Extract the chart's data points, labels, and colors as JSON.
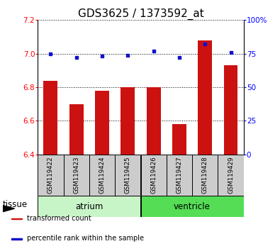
{
  "title": "GDS3625 / 1373592_at",
  "samples": [
    "GSM119422",
    "GSM119423",
    "GSM119424",
    "GSM119425",
    "GSM119426",
    "GSM119427",
    "GSM119428",
    "GSM119429"
  ],
  "transformed_counts": [
    6.84,
    6.7,
    6.78,
    6.8,
    6.8,
    6.58,
    7.08,
    6.93
  ],
  "percentile_ranks": [
    75,
    72,
    73,
    74,
    77,
    72,
    82,
    76
  ],
  "ylim_left": [
    6.4,
    7.2
  ],
  "ylim_right": [
    0,
    100
  ],
  "yticks_left": [
    6.4,
    6.6,
    6.8,
    7.0,
    7.2
  ],
  "yticks_right": [
    0,
    25,
    50,
    75,
    100
  ],
  "ytick_labels_right": [
    "0",
    "25",
    "50",
    "75",
    "100%"
  ],
  "groups": [
    {
      "label": "atrium",
      "start": 0,
      "end": 3,
      "color": "#c8f5c8"
    },
    {
      "label": "ventricle",
      "start": 4,
      "end": 7,
      "color": "#55dd55"
    }
  ],
  "bar_color": "#cc1111",
  "dot_color": "#1111cc",
  "bar_base": 6.4,
  "grid_color": "#000000",
  "bg_color": "#ffffff",
  "tick_box_color": "#cccccc",
  "tissue_label": "tissue",
  "legend_items": [
    {
      "label": "transformed count",
      "color": "#cc1111"
    },
    {
      "label": "percentile rank within the sample",
      "color": "#1111cc"
    }
  ],
  "title_fontsize": 11,
  "tick_fontsize": 7.5,
  "label_fontsize": 8.5,
  "bar_width": 0.55
}
